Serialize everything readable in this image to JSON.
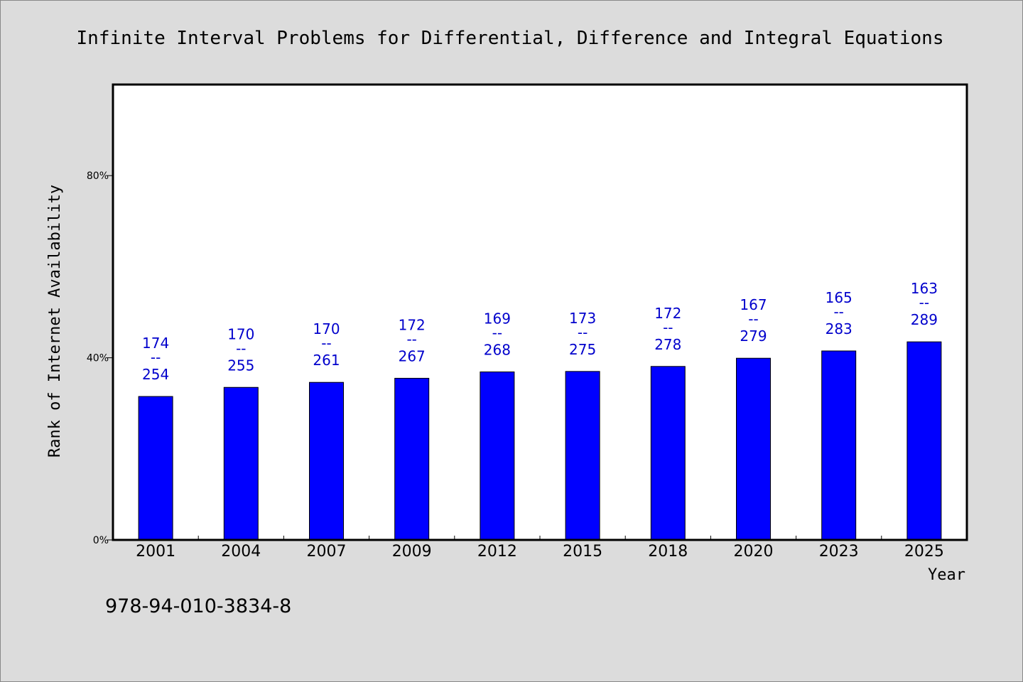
{
  "chart_data": {
    "type": "bar",
    "title": "Infinite Interval Problems for Differential, Difference and Integral Equations",
    "xlabel": "Year",
    "ylabel": "Rank of Internet Availability",
    "ylim": [
      0,
      100
    ],
    "y_ticks": [
      {
        "value": 0,
        "label": "0%"
      },
      {
        "value": 40,
        "label": "40%"
      },
      {
        "value": 80,
        "label": "80%"
      }
    ],
    "categories": [
      "2001",
      "2004",
      "2007",
      "2009",
      "2012",
      "2015",
      "2018",
      "2020",
      "2023",
      "2025"
    ],
    "values": [
      31.5,
      33.5,
      34.6,
      35.5,
      36.9,
      37.0,
      38.1,
      39.9,
      41.5,
      43.5
    ],
    "data_labels": [
      {
        "top": "174",
        "sep": "--",
        "bottom": "254"
      },
      {
        "top": "170",
        "sep": "--",
        "bottom": "255"
      },
      {
        "top": "170",
        "sep": "--",
        "bottom": "261"
      },
      {
        "top": "172",
        "sep": "--",
        "bottom": "267"
      },
      {
        "top": "169",
        "sep": "--",
        "bottom": "268"
      },
      {
        "top": "173",
        "sep": "--",
        "bottom": "275"
      },
      {
        "top": "172",
        "sep": "--",
        "bottom": "278"
      },
      {
        "top": "167",
        "sep": "--",
        "bottom": "279"
      },
      {
        "top": "165",
        "sep": "--",
        "bottom": "283"
      },
      {
        "top": "163",
        "sep": "--",
        "bottom": "289"
      }
    ],
    "bar_color": "#0000ff",
    "label_color": "#0000cc",
    "plot_background": "#ffffff",
    "page_background": "#dcdcdc",
    "grid": false,
    "legend": "none"
  },
  "footer_text": "978-94-010-3834-8"
}
